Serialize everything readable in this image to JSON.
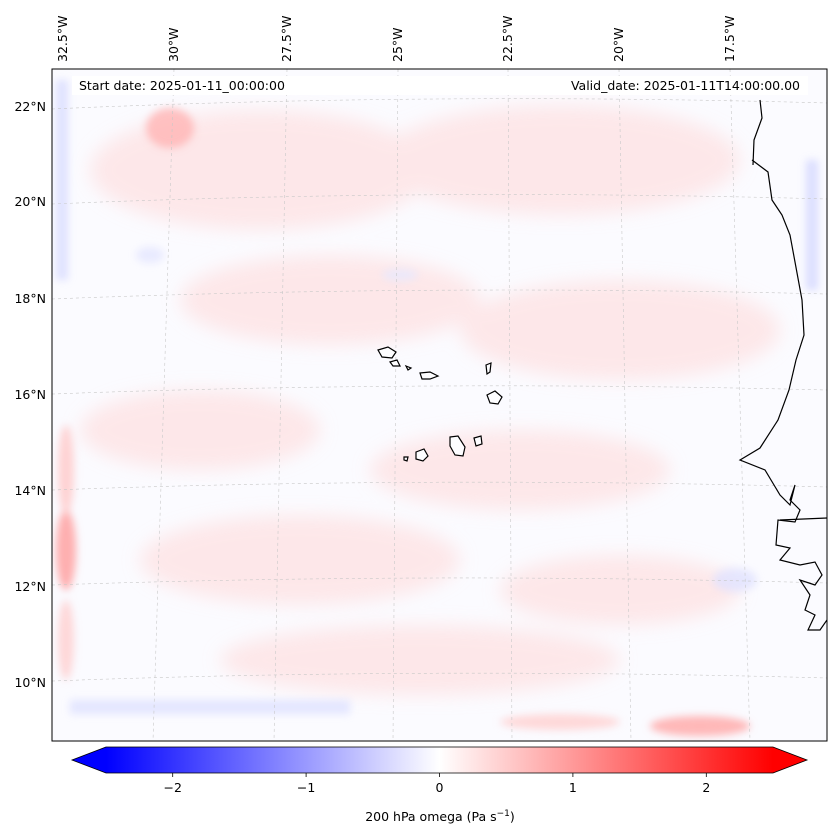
{
  "header": {
    "start_date": "Start date: 2025-01-11_00:00:00",
    "valid_date": "Valid_date: 2025-01-11T14:00:00.00"
  },
  "map": {
    "lon_labels": [
      "32.5°W",
      "30°W",
      "27.5°W",
      "25°W",
      "22.5°W",
      "20°W",
      "17.5°W"
    ],
    "lat_labels": [
      "22°N",
      "20°N",
      "18°N",
      "16°N",
      "14°N",
      "12°N",
      "10°N"
    ]
  },
  "colorbar": {
    "label": "200 hPa omega (Pa s",
    "label_sup": "−1",
    "label_tail": ")",
    "range": [
      -2.5,
      2.5
    ],
    "ticks": [
      "−2",
      "−1",
      "0",
      "1",
      "2"
    ],
    "tick_values": [
      -2,
      -1,
      0,
      1,
      2
    ],
    "colors": {
      "negative": "#0000ff",
      "zero": "#ffffff",
      "positive": "#ff0000"
    }
  }
}
